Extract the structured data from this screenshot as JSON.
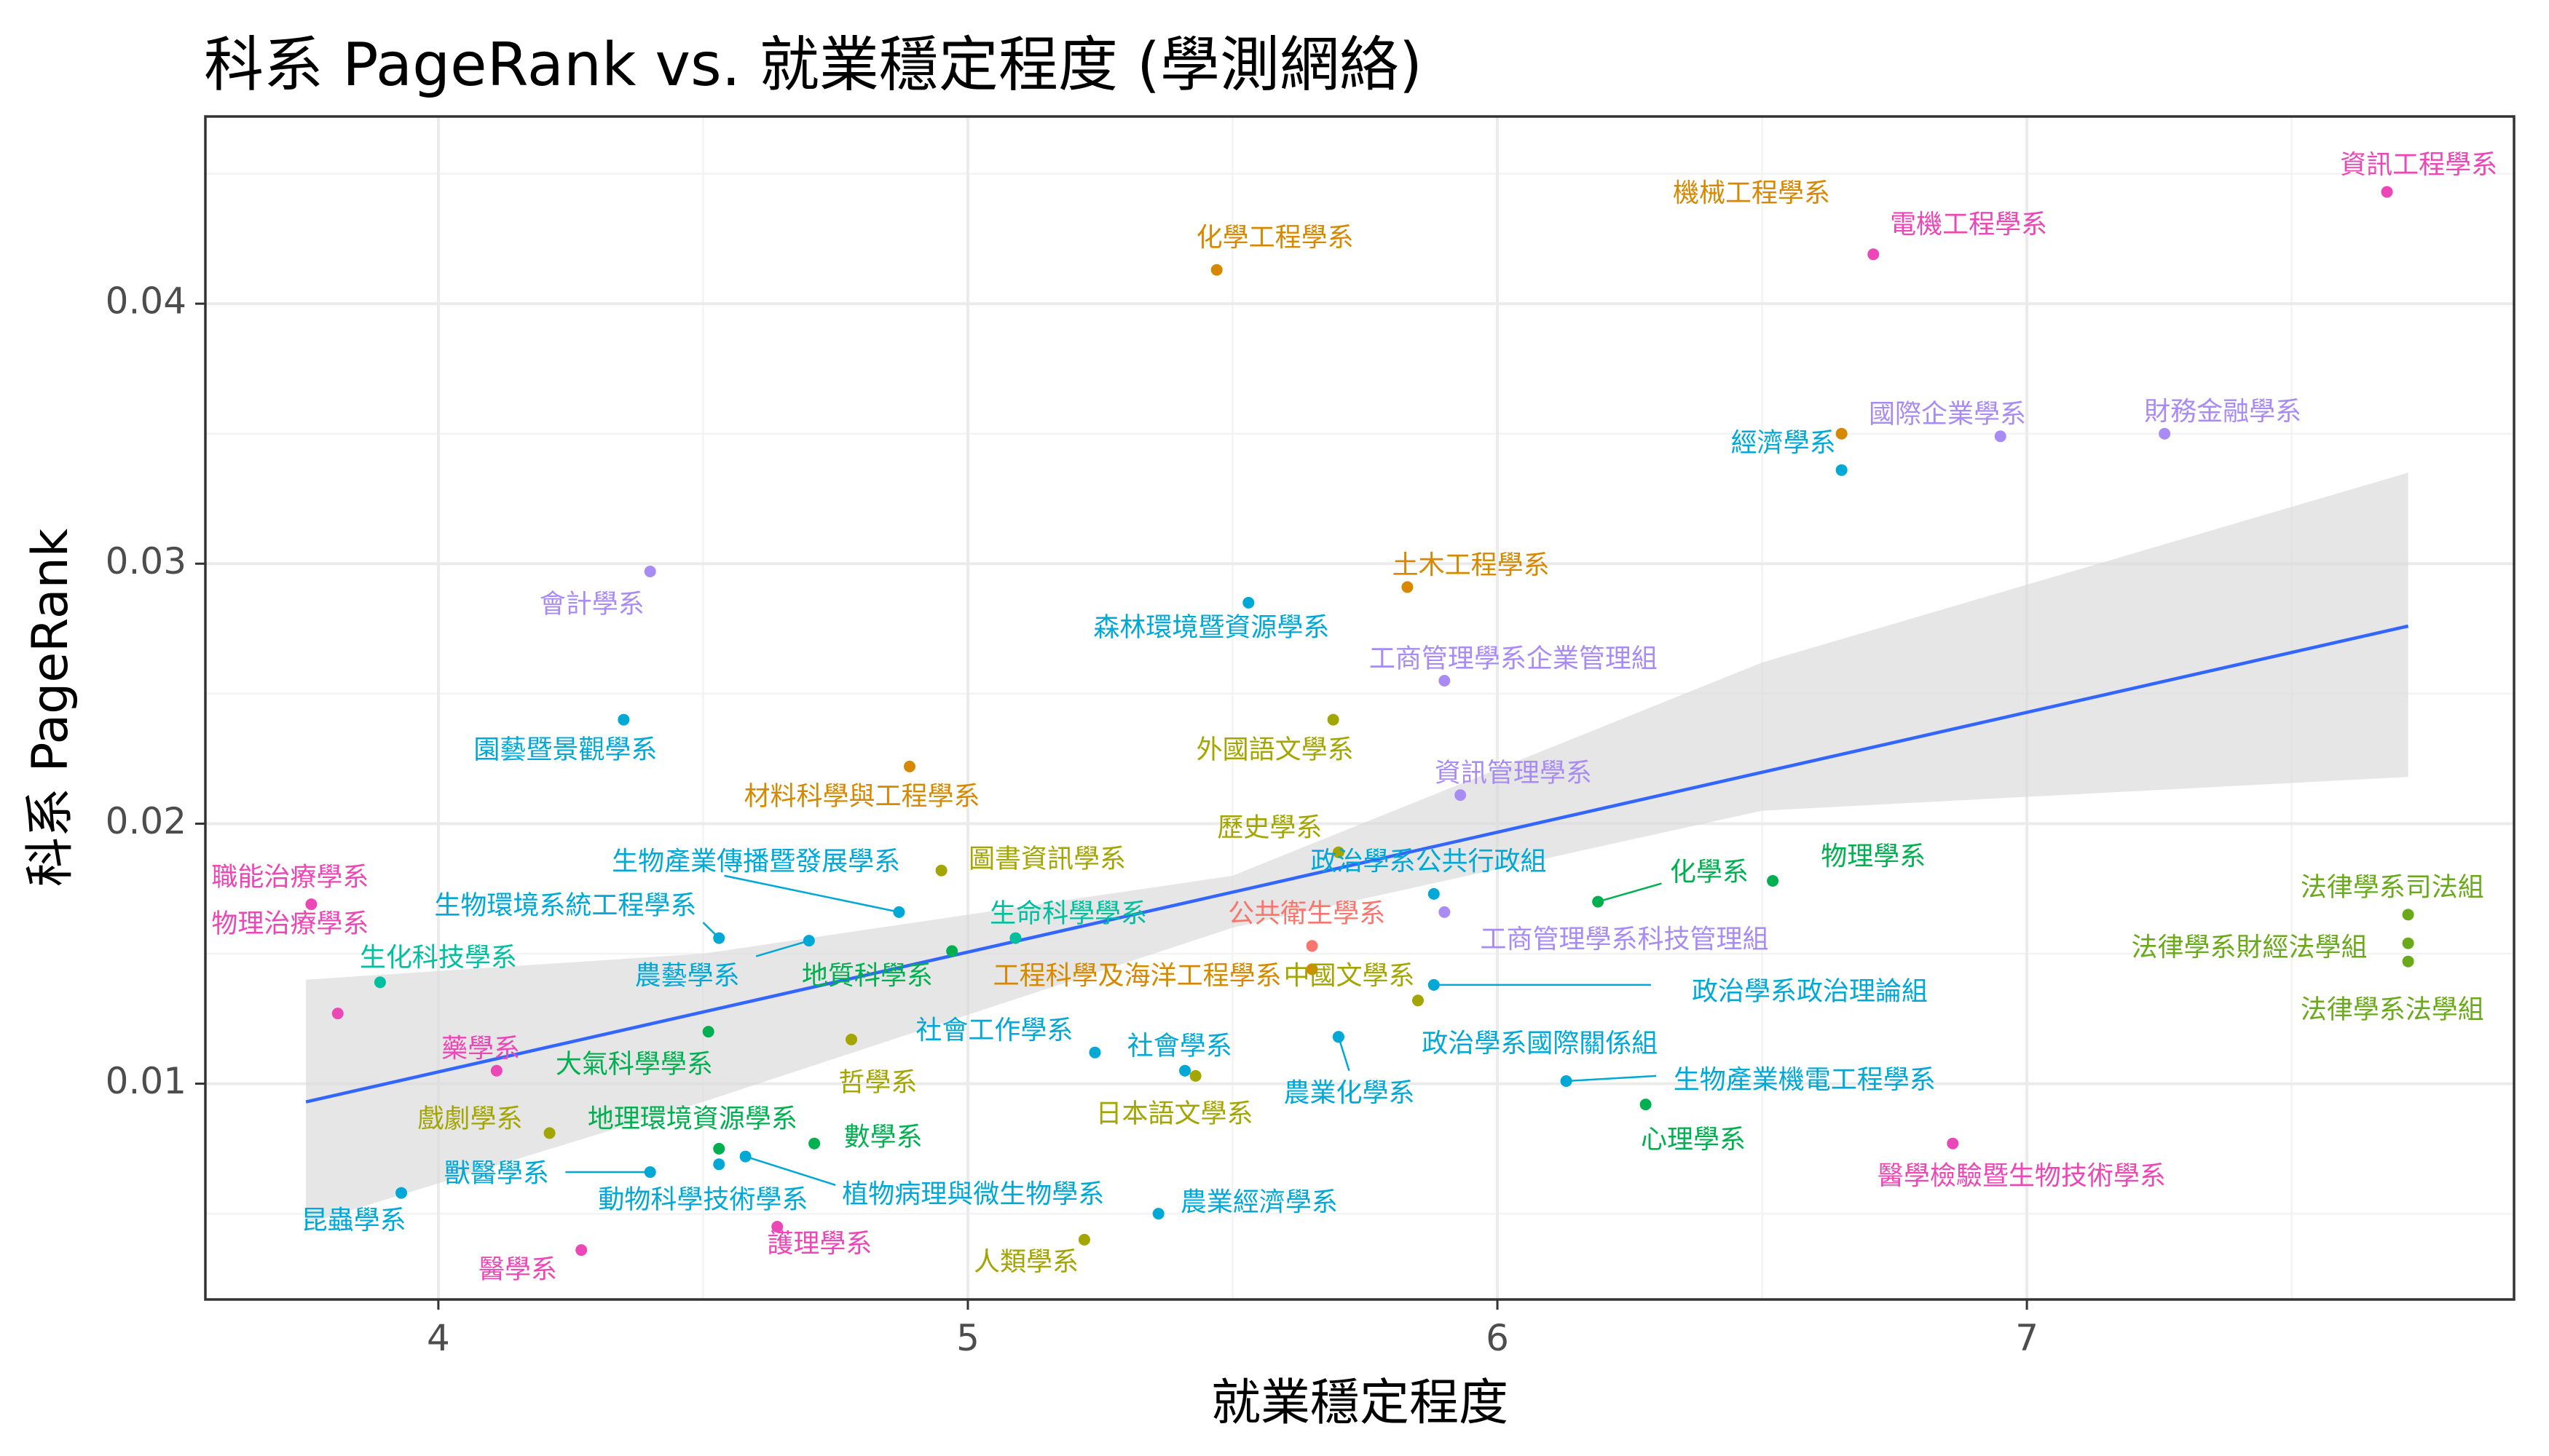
{
  "chart_data": {
    "type": "scatter",
    "title": "科系 PageRank vs. 就業穩定程度 (學測網絡)",
    "xlabel": "就業穩定程度",
    "ylabel": "科系 PageRank",
    "xlim": [
      3.56,
      7.92
    ],
    "ylim": [
      0.0017,
      0.0472
    ],
    "x_ticks": [
      4,
      5,
      6,
      7
    ],
    "y_ticks": [
      0.01,
      0.02,
      0.03,
      0.04
    ],
    "x_tick_labels": [
      "4",
      "5",
      "6",
      "7"
    ],
    "y_tick_labels": [
      "0.01",
      "0.02",
      "0.03",
      "0.04"
    ],
    "grid": true,
    "legend": "none",
    "trend": {
      "method": "linear",
      "color": "#3366ff",
      "band_color": "#d9d9d9",
      "line": [
        [
          3.75,
          0.0093
        ],
        [
          7.72,
          0.0276
        ]
      ],
      "lower": [
        [
          3.75,
          0.0046
        ],
        [
          4.5,
          0.0093
        ],
        [
          5.5,
          0.016
        ],
        [
          6.5,
          0.0205
        ],
        [
          7.72,
          0.0218
        ]
      ],
      "upper": [
        [
          3.75,
          0.014
        ],
        [
          4.5,
          0.015
        ],
        [
          5.5,
          0.018
        ],
        [
          6.5,
          0.0262
        ],
        [
          7.72,
          0.0335
        ]
      ]
    },
    "points": [
      {
        "label": "資訊工程學系",
        "x": 7.68,
        "y": 0.0443,
        "color": "#ec47b6",
        "lx": 7.74,
        "ly": 0.0453,
        "anchor": "middle"
      },
      {
        "label": "機械工程學系",
        "x": 6.65,
        "y": 0.035,
        "color": "#d68900",
        "lx": 6.48,
        "ly": 0.0442,
        "anchor": "middle"
      },
      {
        "label": "電機工程學系",
        "x": 6.71,
        "y": 0.0419,
        "color": "#ec47b6",
        "lx": 6.89,
        "ly": 0.043,
        "anchor": "middle"
      },
      {
        "label": "化學工程學系",
        "x": 5.47,
        "y": 0.0413,
        "color": "#d68900",
        "lx": 5.58,
        "ly": 0.0425,
        "anchor": "middle"
      },
      {
        "label": "國際企業學系",
        "x": 6.95,
        "y": 0.0349,
        "color": "#a98bf5",
        "lx": 6.85,
        "ly": 0.0357,
        "anchor": "middle"
      },
      {
        "label": "財務金融學系",
        "x": 7.26,
        "y": 0.035,
        "color": "#a98bf5",
        "lx": 7.37,
        "ly": 0.0358,
        "anchor": "middle"
      },
      {
        "label": "經濟學系",
        "x": 6.65,
        "y": 0.0336,
        "color": "#00a8d6",
        "lx": 6.54,
        "ly": 0.0346,
        "anchor": "middle"
      },
      {
        "label": "土木工程學系",
        "x": 5.83,
        "y": 0.0291,
        "color": "#d68900",
        "lx": 5.95,
        "ly": 0.0299,
        "anchor": "middle"
      },
      {
        "label": "會計學系",
        "x": 4.4,
        "y": 0.0297,
        "color": "#a98bf5",
        "lx": 4.29,
        "ly": 0.0284,
        "anchor": "middle"
      },
      {
        "label": "森林環境暨資源學系",
        "x": 5.53,
        "y": 0.0285,
        "color": "#00a8d6",
        "lx": 5.46,
        "ly": 0.0275,
        "anchor": "middle"
      },
      {
        "label": "工商管理學系企業管理組",
        "x": 5.9,
        "y": 0.0255,
        "color": "#a98bf5",
        "lx": 6.03,
        "ly": 0.0263,
        "anchor": "middle"
      },
      {
        "label": "園藝暨景觀學系",
        "x": 4.35,
        "y": 0.024,
        "color": "#00a8d6",
        "lx": 4.24,
        "ly": 0.0228,
        "anchor": "middle"
      },
      {
        "label": "外國語文學系",
        "x": 5.69,
        "y": 0.024,
        "color": "#a3a500",
        "lx": 5.58,
        "ly": 0.0228,
        "anchor": "middle"
      },
      {
        "label": "材料科學與工程學系",
        "x": 4.89,
        "y": 0.0222,
        "color": "#d68900",
        "lx": 4.8,
        "ly": 0.021,
        "anchor": "middle"
      },
      {
        "label": "資訊管理學系",
        "x": 5.93,
        "y": 0.0211,
        "color": "#a98bf5",
        "lx": 6.03,
        "ly": 0.0219,
        "anchor": "middle"
      },
      {
        "label": "歷史學系",
        "x": 5.7,
        "y": 0.0189,
        "color": "#a3a500",
        "lx": 5.57,
        "ly": 0.0198,
        "anchor": "middle"
      },
      {
        "label": "職能治療學系",
        "x": 3.76,
        "y": 0.0169,
        "color": "#ec47b6",
        "lx": 3.72,
        "ly": 0.0179,
        "anchor": "middle"
      },
      {
        "label": "生物產業傳播暨發展學系",
        "x": 4.87,
        "y": 0.0166,
        "color": "#00a8d6",
        "lx": 4.6,
        "ly": 0.0185,
        "anchor": "middle",
        "lead": [
          4.54,
          0.018
        ]
      },
      {
        "label": "圖書資訊學系",
        "x": 4.95,
        "y": 0.0182,
        "color": "#a3a500",
        "lx": 5.15,
        "ly": 0.0186,
        "anchor": "middle"
      },
      {
        "label": "政治學系公共行政組",
        "x": 5.88,
        "y": 0.0173,
        "color": "#00a8d6",
        "lx": 5.87,
        "ly": 0.0185,
        "anchor": "middle"
      },
      {
        "label": "化學系",
        "x": 6.19,
        "y": 0.017,
        "color": "#00b050",
        "lx": 6.4,
        "ly": 0.0181,
        "anchor": "middle",
        "lead": [
          6.31,
          0.0177
        ]
      },
      {
        "label": "物理學系",
        "x": 6.52,
        "y": 0.0178,
        "color": "#00b050",
        "lx": 6.71,
        "ly": 0.0187,
        "anchor": "middle"
      },
      {
        "label": "法律學系司法組",
        "x": 7.72,
        "y": 0.0165,
        "color": "#6aaa1a",
        "lx": 7.69,
        "ly": 0.0175,
        "anchor": "middle"
      },
      {
        "label": "生物環境系統工程學系",
        "x": 4.53,
        "y": 0.0156,
        "color": "#00a8d6",
        "lx": 4.24,
        "ly": 0.0168,
        "anchor": "middle",
        "lead": [
          4.5,
          0.0162
        ]
      },
      {
        "label": "生命科學學系",
        "x": 5.09,
        "y": 0.0156,
        "color": "#00bfa0",
        "lx": 5.19,
        "ly": 0.0165,
        "anchor": "middle"
      },
      {
        "label": "公共衛生學系",
        "x": 5.65,
        "y": 0.0153,
        "color": "#f8766d",
        "lx": 5.64,
        "ly": 0.0165,
        "anchor": "middle"
      },
      {
        "label": "工商管理學系科技管理組",
        "x": 5.9,
        "y": 0.0166,
        "color": "#a98bf5",
        "lx": 6.24,
        "ly": 0.0155,
        "anchor": "middle"
      },
      {
        "label": "法律學系財經法學組",
        "x": 7.72,
        "y": 0.0154,
        "color": "#6aaa1a",
        "lx": 7.42,
        "ly": 0.0152,
        "anchor": "middle"
      },
      {
        "label": "農藝學系",
        "x": 4.7,
        "y": 0.0155,
        "color": "#00a8d6",
        "lx": 4.47,
        "ly": 0.0141,
        "anchor": "middle",
        "lead": [
          4.6,
          0.0149
        ]
      },
      {
        "label": "地質科學系",
        "x": 4.97,
        "y": 0.0151,
        "color": "#00b050",
        "lx": 4.81,
        "ly": 0.0141,
        "anchor": "middle"
      },
      {
        "label": "生化科技學系",
        "x": 3.89,
        "y": 0.0139,
        "color": "#00bfa0",
        "lx": 4.0,
        "ly": 0.0148,
        "anchor": "middle"
      },
      {
        "label": "工程科學及海洋工程學系",
        "x": 5.65,
        "y": 0.0144,
        "color": "#d68900",
        "lx": 5.32,
        "ly": 0.0141,
        "anchor": "middle"
      },
      {
        "label": "中國文學系",
        "x": 5.85,
        "y": 0.0132,
        "color": "#a3a500",
        "lx": 5.72,
        "ly": 0.0141,
        "anchor": "middle"
      },
      {
        "label": "法律學系法學組",
        "x": 7.72,
        "y": 0.0147,
        "color": "#6aaa1a",
        "lx": 7.69,
        "ly": 0.0128,
        "anchor": "middle"
      },
      {
        "label": "政治學系政治理論組",
        "x": 5.88,
        "y": 0.0138,
        "color": "#00a8d6",
        "lx": 6.59,
        "ly": 0.0135,
        "anchor": "middle",
        "lead": [
          6.29,
          0.0138
        ]
      },
      {
        "label": "物理治療學系",
        "x": 3.81,
        "y": 0.0127,
        "color": "#ec47b6",
        "lx": 3.72,
        "ly": 0.0161,
        "anchor": "middle"
      },
      {
        "label": "藥學系",
        "x": 4.11,
        "y": 0.0105,
        "color": "#ec47b6",
        "lx": 4.08,
        "ly": 0.0113,
        "anchor": "middle"
      },
      {
        "label": "大氣科學學系",
        "x": 4.51,
        "y": 0.012,
        "color": "#00b050",
        "lx": 4.37,
        "ly": 0.0107,
        "anchor": "middle"
      },
      {
        "label": "社會工作學系",
        "x": 5.24,
        "y": 0.0112,
        "color": "#00a8d6",
        "lx": 5.05,
        "ly": 0.012,
        "anchor": "middle"
      },
      {
        "label": "哲學系",
        "x": 4.78,
        "y": 0.0117,
        "color": "#a3a500",
        "lx": 4.83,
        "ly": 0.01,
        "anchor": "middle"
      },
      {
        "label": "社會學系",
        "x": 5.41,
        "y": 0.0105,
        "color": "#00a8d6",
        "lx": 5.4,
        "ly": 0.0114,
        "anchor": "middle"
      },
      {
        "label": "政治學系國際關係組",
        "x": 5.7,
        "y": 0.0118,
        "color": "#00a8d6",
        "lx": 6.08,
        "ly": 0.0115,
        "anchor": "middle"
      },
      {
        "label": "農業化學系",
        "x": 5.7,
        "y": 0.0118,
        "color": "#00a8d6",
        "lx": 5.72,
        "ly": 0.0096,
        "anchor": "middle",
        "lead": [
          5.72,
          0.0105
        ]
      },
      {
        "label": "日本語文學系",
        "x": 5.43,
        "y": 0.0103,
        "color": "#a3a500",
        "lx": 5.39,
        "ly": 0.0088,
        "anchor": "middle"
      },
      {
        "label": "生物產業機電工程學系",
        "x": 6.13,
        "y": 0.0101,
        "color": "#00a8d6",
        "lx": 6.58,
        "ly": 0.0101,
        "anchor": "middle",
        "lead": [
          6.3,
          0.0103
        ]
      },
      {
        "label": "心理學系",
        "x": 6.28,
        "y": 0.0092,
        "color": "#00b050",
        "lx": 6.37,
        "ly": 0.0078,
        "anchor": "middle"
      },
      {
        "label": "戲劇學系",
        "x": 4.21,
        "y": 0.0081,
        "color": "#a3a500",
        "lx": 4.06,
        "ly": 0.0086,
        "anchor": "middle"
      },
      {
        "label": "地理環境資源學系",
        "x": 4.53,
        "y": 0.0075,
        "color": "#00b050",
        "lx": 4.48,
        "ly": 0.0086,
        "anchor": "middle"
      },
      {
        "label": "數學系",
        "x": 4.71,
        "y": 0.0077,
        "color": "#00b050",
        "lx": 4.84,
        "ly": 0.0079,
        "anchor": "middle"
      },
      {
        "label": "獸醫學系",
        "x": 4.4,
        "y": 0.0066,
        "color": "#00a8d6",
        "lx": 4.11,
        "ly": 0.0065,
        "anchor": "middle",
        "lead": [
          4.24,
          0.0066
        ]
      },
      {
        "label": "植物病理與微生物學系",
        "x": 4.58,
        "y": 0.0072,
        "color": "#00a8d6",
        "lx": 5.01,
        "ly": 0.0057,
        "anchor": "middle",
        "lead": [
          4.75,
          0.0061
        ]
      },
      {
        "label": "動物科學技術學系",
        "x": 4.53,
        "y": 0.0069,
        "color": "#00a8d6",
        "lx": 4.5,
        "ly": 0.0055,
        "anchor": "middle"
      },
      {
        "label": "農業經濟學系",
        "x": 5.36,
        "y": 0.005,
        "color": "#00a8d6",
        "lx": 5.55,
        "ly": 0.0054,
        "anchor": "middle"
      },
      {
        "label": "昆蟲學系",
        "x": 3.93,
        "y": 0.0058,
        "color": "#00a8d6",
        "lx": 3.84,
        "ly": 0.0047,
        "anchor": "middle"
      },
      {
        "label": "護理學系",
        "x": 4.64,
        "y": 0.0045,
        "color": "#ec47b6",
        "lx": 4.72,
        "ly": 0.0038,
        "anchor": "middle"
      },
      {
        "label": "醫學檢驗暨生物技術學系",
        "x": 6.86,
        "y": 0.0077,
        "color": "#ec47b6",
        "lx": 6.99,
        "ly": 0.0064,
        "anchor": "middle"
      },
      {
        "label": "醫學系",
        "x": 4.27,
        "y": 0.0036,
        "color": "#ec47b6",
        "lx": 4.15,
        "ly": 0.0028,
        "anchor": "middle"
      },
      {
        "label": "人類學系",
        "x": 5.22,
        "y": 0.004,
        "color": "#a3a500",
        "lx": 5.11,
        "ly": 0.0031,
        "anchor": "middle"
      }
    ]
  }
}
